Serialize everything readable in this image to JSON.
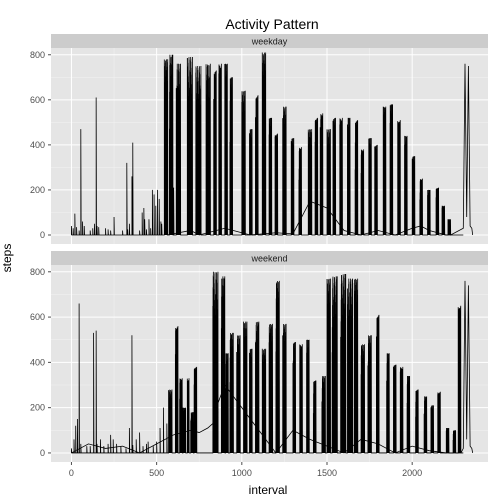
{
  "chart_data": {
    "type": "line",
    "title": "Activity Pattern",
    "xlabel": "interval",
    "ylabel": "steps",
    "xlim": [
      -120,
      2445
    ],
    "ylim": [
      -40,
      830
    ],
    "xticks": [
      0,
      500,
      1000,
      1500,
      2000
    ],
    "yticks": [
      0,
      200,
      400,
      600,
      800
    ],
    "grid": true,
    "background": "#E5E5E5",
    "strip_color": "#CCCCCC",
    "line_color": "#000000",
    "panels": [
      {
        "name": "weekday",
        "spikes": [
          [
            0,
            40
          ],
          [
            10,
            30
          ],
          [
            20,
            95
          ],
          [
            30,
            35
          ],
          [
            45,
            20
          ],
          [
            55,
            470
          ],
          [
            65,
            60
          ],
          [
            75,
            40
          ],
          [
            110,
            20
          ],
          [
            125,
            30
          ],
          [
            135,
            50
          ],
          [
            145,
            610
          ],
          [
            150,
            40
          ],
          [
            160,
            35
          ],
          [
            200,
            30
          ],
          [
            215,
            25
          ],
          [
            230,
            20
          ],
          [
            250,
            80
          ],
          [
            300,
            20
          ],
          [
            325,
            320
          ],
          [
            330,
            25
          ],
          [
            340,
            50
          ],
          [
            355,
            260
          ],
          [
            360,
            410
          ],
          [
            400,
            20
          ],
          [
            415,
            100
          ],
          [
            425,
            120
          ],
          [
            430,
            70
          ],
          [
            440,
            25
          ],
          [
            455,
            70
          ],
          [
            465,
            30
          ],
          [
            475,
            200
          ],
          [
            485,
            180
          ],
          [
            495,
            130
          ],
          [
            505,
            200
          ],
          [
            515,
            160
          ],
          [
            525,
            60
          ],
          [
            530,
            50
          ],
          [
            545,
            40
          ],
          [
            555,
            30
          ],
          [
            600,
            210
          ],
          [
            700,
            30
          ],
          [
            800,
            220
          ],
          [
            900,
            40
          ],
          [
            1000,
            60
          ]
        ],
        "blocks": [
          [
            545,
            565,
            780
          ],
          [
            575,
            595,
            800
          ],
          [
            615,
            640,
            760
          ],
          [
            680,
            710,
            790
          ],
          [
            730,
            760,
            750
          ],
          [
            790,
            815,
            760
          ],
          [
            835,
            850,
            730
          ],
          [
            865,
            880,
            760
          ],
          [
            900,
            915,
            760
          ],
          [
            930,
            945,
            700
          ],
          [
            1000,
            1020,
            640
          ],
          [
            1045,
            1060,
            470
          ],
          [
            1080,
            1095,
            620
          ],
          [
            1120,
            1140,
            810
          ],
          [
            1160,
            1175,
            520
          ],
          [
            1195,
            1210,
            450
          ],
          [
            1240,
            1260,
            570
          ],
          [
            1290,
            1305,
            430
          ],
          [
            1335,
            1350,
            390
          ],
          [
            1390,
            1410,
            470
          ],
          [
            1430,
            1445,
            520
          ],
          [
            1460,
            1475,
            540
          ],
          [
            1500,
            1520,
            470
          ],
          [
            1535,
            1550,
            520
          ],
          [
            1575,
            1590,
            520
          ],
          [
            1620,
            1635,
            520
          ],
          [
            1665,
            1680,
            510
          ],
          [
            1700,
            1715,
            380
          ],
          [
            1745,
            1760,
            430
          ],
          [
            1780,
            1795,
            400
          ],
          [
            1830,
            1845,
            570
          ],
          [
            1870,
            1885,
            580
          ],
          [
            1915,
            1930,
            510
          ],
          [
            1955,
            1970,
            440
          ],
          [
            2000,
            2015,
            350
          ],
          [
            2045,
            2060,
            250
          ],
          [
            2090,
            2105,
            200
          ],
          [
            2140,
            2155,
            210
          ],
          [
            2175,
            2190,
            130
          ],
          [
            2210,
            2225,
            70
          ]
        ],
        "tail": [
          [
            2300,
            30
          ],
          [
            2310,
            760
          ],
          [
            2320,
            80
          ],
          [
            2330,
            750
          ],
          [
            2340,
            40
          ],
          [
            2350,
            30
          ],
          [
            2355,
            0
          ]
        ],
        "floor_path": [
          [
            560,
            0
          ],
          [
            700,
            20
          ],
          [
            750,
            0
          ],
          [
            900,
            30
          ],
          [
            1000,
            10
          ],
          [
            1050,
            0
          ],
          [
            1200,
            10
          ],
          [
            1300,
            5
          ],
          [
            1400,
            150
          ],
          [
            1500,
            120
          ],
          [
            1600,
            20
          ],
          [
            1700,
            0
          ],
          [
            1800,
            20
          ],
          [
            1900,
            0
          ],
          [
            2000,
            30
          ],
          [
            2050,
            40
          ],
          [
            2100,
            20
          ],
          [
            2200,
            0
          ],
          [
            2300,
            0
          ]
        ]
      },
      {
        "name": "weekend",
        "spikes": [
          [
            0,
            20
          ],
          [
            15,
            60
          ],
          [
            25,
            120
          ],
          [
            35,
            150
          ],
          [
            45,
            660
          ],
          [
            55,
            40
          ],
          [
            90,
            30
          ],
          [
            110,
            30
          ],
          [
            130,
            530
          ],
          [
            145,
            540
          ],
          [
            150,
            40
          ],
          [
            170,
            60
          ],
          [
            190,
            30
          ],
          [
            215,
            40
          ],
          [
            230,
            80
          ],
          [
            245,
            60
          ],
          [
            265,
            40
          ],
          [
            290,
            30
          ],
          [
            320,
            20
          ],
          [
            340,
            110
          ],
          [
            355,
            520
          ],
          [
            360,
            35
          ],
          [
            380,
            60
          ],
          [
            400,
            90
          ],
          [
            420,
            30
          ],
          [
            440,
            40
          ],
          [
            450,
            50
          ],
          [
            480,
            30
          ],
          [
            500,
            50
          ],
          [
            520,
            110
          ],
          [
            540,
            200
          ],
          [
            560,
            130
          ],
          [
            580,
            40
          ]
        ],
        "blocks": [
          [
            570,
            590,
            280
          ],
          [
            610,
            625,
            560
          ],
          [
            635,
            650,
            330
          ],
          [
            655,
            670,
            200
          ],
          [
            680,
            690,
            330
          ],
          [
            700,
            715,
            180
          ],
          [
            720,
            735,
            380
          ],
          [
            830,
            860,
            800
          ],
          [
            880,
            900,
            780
          ],
          [
            905,
            920,
            440
          ],
          [
            930,
            950,
            530
          ],
          [
            970,
            990,
            520
          ],
          [
            1010,
            1030,
            580
          ],
          [
            1045,
            1060,
            460
          ],
          [
            1080,
            1100,
            580
          ],
          [
            1120,
            1140,
            460
          ],
          [
            1160,
            1180,
            570
          ],
          [
            1200,
            1220,
            760
          ],
          [
            1240,
            1260,
            570
          ],
          [
            1300,
            1315,
            490
          ],
          [
            1340,
            1355,
            480
          ],
          [
            1380,
            1395,
            500
          ],
          [
            1420,
            1435,
            320
          ],
          [
            1470,
            1490,
            340
          ],
          [
            1500,
            1520,
            770
          ],
          [
            1530,
            1560,
            780
          ],
          [
            1580,
            1610,
            790
          ],
          [
            1620,
            1650,
            770
          ],
          [
            1660,
            1680,
            770
          ],
          [
            1700,
            1720,
            480
          ],
          [
            1740,
            1760,
            520
          ],
          [
            1790,
            1805,
            610
          ],
          [
            1850,
            1865,
            440
          ],
          [
            1890,
            1905,
            390
          ],
          [
            1930,
            1945,
            380
          ],
          [
            1970,
            1985,
            340
          ],
          [
            2020,
            2035,
            280
          ],
          [
            2070,
            2085,
            250
          ],
          [
            2110,
            2125,
            210
          ],
          [
            2150,
            2165,
            270
          ],
          [
            2200,
            2215,
            110
          ],
          [
            2240,
            2255,
            100
          ],
          [
            2270,
            2285,
            650
          ]
        ],
        "tail": [
          [
            2300,
            20
          ],
          [
            2310,
            760
          ],
          [
            2320,
            60
          ],
          [
            2330,
            740
          ],
          [
            2340,
            30
          ],
          [
            2350,
            20
          ],
          [
            2355,
            0
          ]
        ],
        "floor_path": [
          [
            0,
            0
          ],
          [
            100,
            40
          ],
          [
            200,
            20
          ],
          [
            300,
            30
          ],
          [
            400,
            0
          ],
          [
            500,
            40
          ],
          [
            600,
            80
          ],
          [
            700,
            100
          ],
          [
            750,
            90
          ],
          [
            800,
            110
          ],
          [
            830,
            130
          ],
          [
            850,
            200
          ],
          [
            900,
            300
          ],
          [
            1000,
            200
          ],
          [
            1100,
            100
          ],
          [
            1200,
            0
          ],
          [
            1300,
            100
          ],
          [
            1400,
            60
          ],
          [
            1500,
            30
          ],
          [
            1600,
            0
          ],
          [
            1700,
            60
          ],
          [
            1800,
            40
          ],
          [
            1900,
            0
          ],
          [
            2000,
            30
          ],
          [
            2100,
            10
          ],
          [
            2200,
            0
          ],
          [
            2300,
            0
          ]
        ]
      }
    ]
  }
}
